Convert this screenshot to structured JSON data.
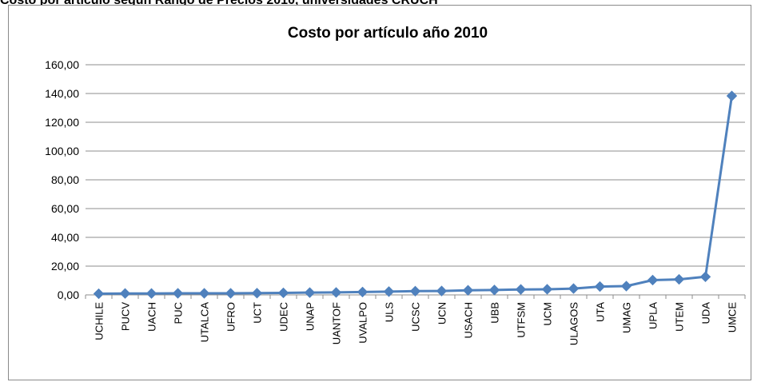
{
  "top_text": "Costo por artículo según Rango de Precios 2010, universidades CRUCH",
  "chart_data": {
    "type": "line",
    "title": "Costo por artículo año 2010",
    "xlabel": "",
    "ylabel": "",
    "ylim": [
      0,
      160
    ],
    "yticks": [
      "0,00",
      "20,00",
      "40,00",
      "60,00",
      "80,00",
      "100,00",
      "120,00",
      "140,00",
      "160,00"
    ],
    "grid": true,
    "legend": "none",
    "series_color": "#4f81bd",
    "categories": [
      "UCHILE",
      "PUCV",
      "UACH",
      "PUC",
      "UTALCA",
      "UFRO",
      "UCT",
      "UDEC",
      "UNAP",
      "UANTOF",
      "UVALPO",
      "ULS",
      "UCSC",
      "UCN",
      "USACH",
      "UBB",
      "UTFSM",
      "UCM",
      "ULAGOS",
      "UTA",
      "UMAG",
      "UPLA",
      "UTEM",
      "UDA",
      "UMCE"
    ],
    "values": [
      0.8,
      1.0,
      1.0,
      1.1,
      1.1,
      1.1,
      1.2,
      1.4,
      1.6,
      1.7,
      2.0,
      2.3,
      2.6,
      2.7,
      3.2,
      3.4,
      3.8,
      3.9,
      4.4,
      5.8,
      6.1,
      10.3,
      10.8,
      12.6,
      138.3
    ]
  }
}
